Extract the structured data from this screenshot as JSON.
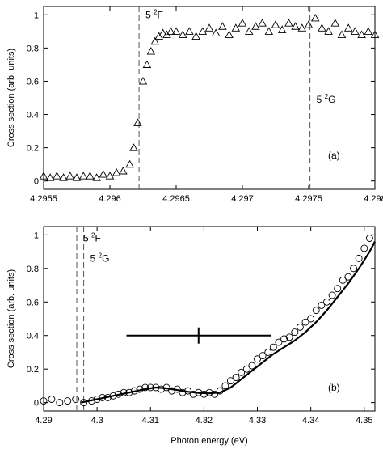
{
  "chart_data": [
    {
      "type": "scatter",
      "panel_label": "(a)",
      "xlabel": "",
      "ylabel": "Cross section (arb. units)",
      "xlim": [
        4.2955,
        4.298
      ],
      "ylim": [
        -0.05,
        1.05
      ],
      "xticks": [
        "4.2955",
        "4.296",
        "4.2965",
        "4.297",
        "4.2975",
        "4.298"
      ],
      "xtick_values": [
        4.2955,
        4.296,
        4.2965,
        4.297,
        4.2975,
        4.298
      ],
      "yticks": [
        "0",
        "0.2",
        "0.4",
        "0.6",
        "0.8",
        "1"
      ],
      "ytick_values": [
        0,
        0.2,
        0.4,
        0.6,
        0.8,
        1
      ],
      "grid": false,
      "marker": "triangle",
      "threshold_lines": [
        {
          "x": 4.29622,
          "level": "5",
          "sup": "2",
          "term": "F",
          "label_y": 0.98
        },
        {
          "x": 4.29751,
          "level": "5",
          "sup": "2",
          "term": "G",
          "label_y": 0.47
        }
      ],
      "points": {
        "x": [
          4.2955,
          4.29555,
          4.2956,
          4.29565,
          4.2957,
          4.29575,
          4.2958,
          4.29585,
          4.2959,
          4.29595,
          4.296,
          4.29605,
          4.2961,
          4.29615,
          4.29618,
          4.29621,
          4.29625,
          4.29628,
          4.29631,
          4.29634,
          4.29637,
          4.2964,
          4.29643,
          4.29646,
          4.2965,
          4.29655,
          4.2966,
          4.29665,
          4.2967,
          4.29675,
          4.2968,
          4.29685,
          4.2969,
          4.29695,
          4.297,
          4.29705,
          4.2971,
          4.29715,
          4.2972,
          4.29725,
          4.2973,
          4.29735,
          4.2974,
          4.29745,
          4.2975,
          4.29755,
          4.2976,
          4.29765,
          4.2977,
          4.29775,
          4.2978,
          4.29785,
          4.2979,
          4.29795,
          4.298
        ],
        "y": [
          0.03,
          0.02,
          0.03,
          0.02,
          0.03,
          0.02,
          0.03,
          0.03,
          0.02,
          0.04,
          0.03,
          0.05,
          0.06,
          0.1,
          0.2,
          0.35,
          0.6,
          0.7,
          0.78,
          0.84,
          0.87,
          0.89,
          0.88,
          0.9,
          0.9,
          0.88,
          0.9,
          0.87,
          0.9,
          0.92,
          0.89,
          0.93,
          0.88,
          0.92,
          0.95,
          0.9,
          0.93,
          0.95,
          0.9,
          0.94,
          0.91,
          0.95,
          0.93,
          0.92,
          0.94,
          0.98,
          0.92,
          0.9,
          0.95,
          0.88,
          0.92,
          0.9,
          0.88,
          0.9,
          0.88
        ]
      }
    },
    {
      "type": "scatter",
      "panel_label": "(b)",
      "xlabel": "Photon energy (eV)",
      "ylabel": "Cross section (arb. units)",
      "xlim": [
        4.29,
        4.352
      ],
      "ylim": [
        -0.05,
        1.05
      ],
      "xticks": [
        "4.29",
        "4.3",
        "4.31",
        "4.32",
        "4.33",
        "4.34",
        "4.35"
      ],
      "xtick_values": [
        4.29,
        4.3,
        4.31,
        4.32,
        4.33,
        4.34,
        4.35
      ],
      "yticks": [
        "0",
        "0.2",
        "0.4",
        "0.6",
        "0.8",
        "1"
      ],
      "ytick_values": [
        0,
        0.2,
        0.4,
        0.6,
        0.8,
        1
      ],
      "grid": false,
      "marker": "circle",
      "threshold_lines": [
        {
          "x": 4.2962,
          "level": "5",
          "sup": "2",
          "term": "F",
          "label_y": 0.96
        },
        {
          "x": 4.2975,
          "level": "5",
          "sup": "2",
          "term": "G",
          "label_y": 0.84
        }
      ],
      "points": {
        "x": [
          4.29,
          4.2915,
          4.293,
          4.2945,
          4.296,
          4.2975,
          4.299,
          4.3,
          4.301,
          4.302,
          4.303,
          4.304,
          4.305,
          4.306,
          4.307,
          4.308,
          4.309,
          4.31,
          4.311,
          4.312,
          4.313,
          4.314,
          4.315,
          4.316,
          4.317,
          4.318,
          4.319,
          4.32,
          4.321,
          4.322,
          4.323,
          4.324,
          4.325,
          4.326,
          4.327,
          4.328,
          4.329,
          4.33,
          4.331,
          4.332,
          4.333,
          4.334,
          4.335,
          4.336,
          4.337,
          4.338,
          4.339,
          4.34,
          4.341,
          4.342,
          4.343,
          4.344,
          4.345,
          4.346,
          4.347,
          4.348,
          4.349,
          4.35,
          4.351
        ],
        "y": [
          0.01,
          0.02,
          0.0,
          0.01,
          0.02,
          0.0,
          0.01,
          0.02,
          0.03,
          0.03,
          0.04,
          0.05,
          0.06,
          0.06,
          0.07,
          0.08,
          0.09,
          0.09,
          0.09,
          0.08,
          0.09,
          0.07,
          0.08,
          0.06,
          0.07,
          0.05,
          0.06,
          0.05,
          0.06,
          0.05,
          0.07,
          0.1,
          0.13,
          0.15,
          0.18,
          0.2,
          0.22,
          0.26,
          0.28,
          0.3,
          0.33,
          0.36,
          0.38,
          0.39,
          0.42,
          0.45,
          0.48,
          0.5,
          0.55,
          0.58,
          0.6,
          0.64,
          0.68,
          0.73,
          0.75,
          0.8,
          0.86,
          0.92,
          0.98
        ]
      },
      "fit_curve": {
        "x": [
          4.297,
          4.3,
          4.303,
          4.306,
          4.309,
          4.311,
          4.313,
          4.315,
          4.317,
          4.319,
          4.321,
          4.323,
          4.325,
          4.327,
          4.329,
          4.331,
          4.333,
          4.335,
          4.337,
          4.339,
          4.341,
          4.343,
          4.345,
          4.347,
          4.349,
          4.351,
          4.352
        ],
        "y": [
          0.0,
          0.02,
          0.04,
          0.06,
          0.08,
          0.09,
          0.085,
          0.075,
          0.065,
          0.058,
          0.055,
          0.06,
          0.09,
          0.14,
          0.19,
          0.24,
          0.29,
          0.33,
          0.37,
          0.42,
          0.48,
          0.55,
          0.63,
          0.71,
          0.8,
          0.9,
          0.96
        ]
      },
      "resolution_bar": {
        "x_start": 4.3055,
        "x_end": 4.3325,
        "y": 0.4,
        "center": 4.319
      }
    }
  ]
}
